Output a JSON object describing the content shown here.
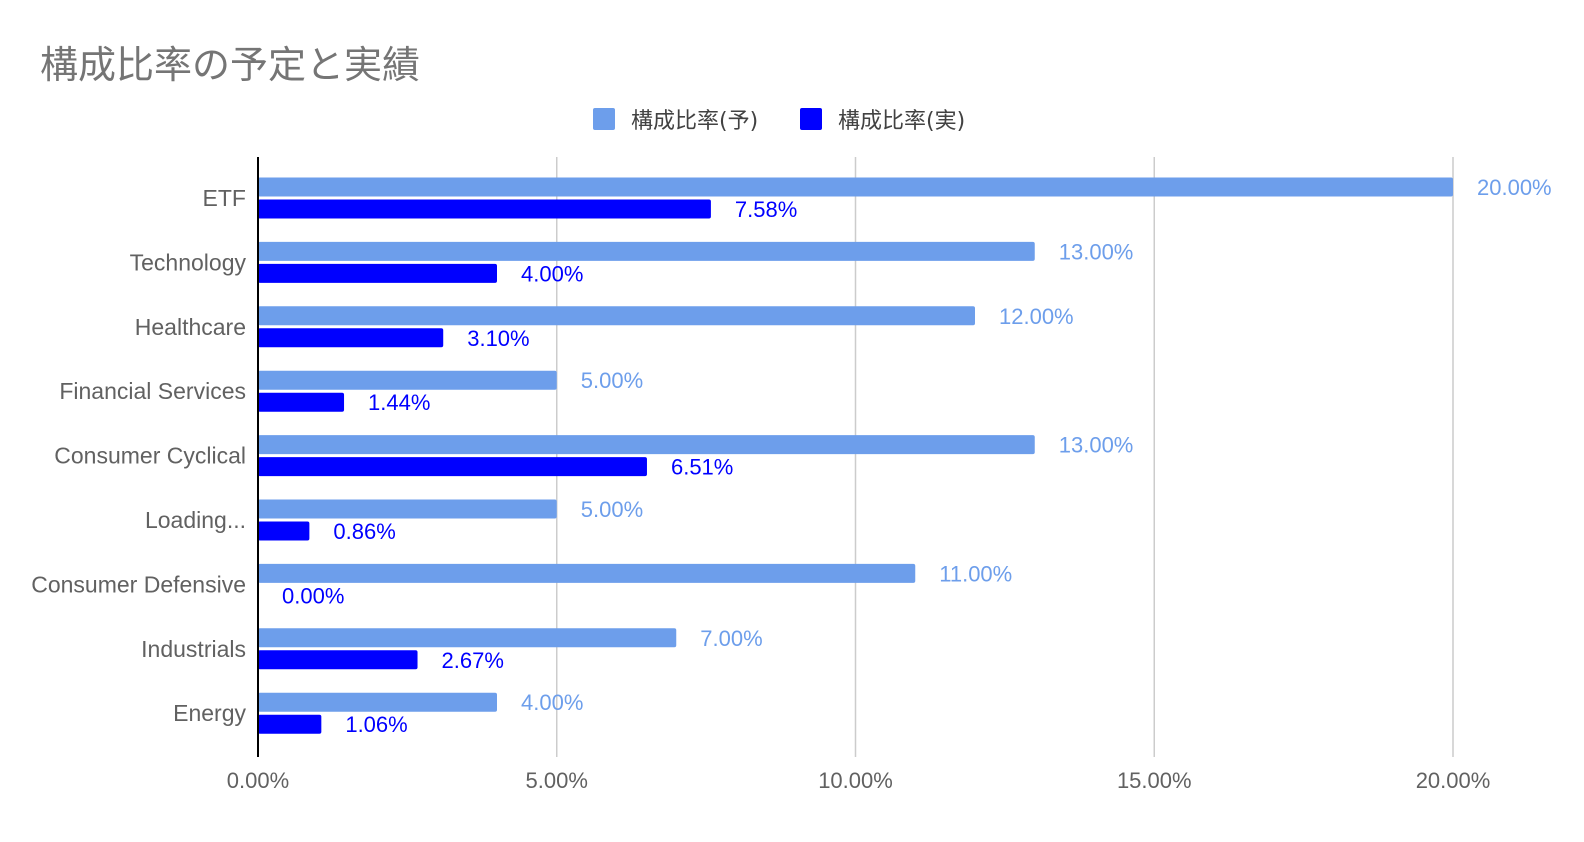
{
  "chart_data": {
    "type": "bar",
    "orientation": "horizontal",
    "title": "構成比率の予定と実績",
    "categories": [
      "ETF",
      "Technology",
      "Healthcare",
      "Financial Services",
      "Consumer Cyclical",
      "Loading...",
      "Consumer Defensive",
      "Industrials",
      "Energy"
    ],
    "series": [
      {
        "name": "構成比率(予)",
        "color": "#6d9eeb",
        "values": [
          20.0,
          13.0,
          12.0,
          5.0,
          13.0,
          5.0,
          11.0,
          7.0,
          4.0
        ],
        "labels": [
          "20.00%",
          "13.00%",
          "12.00%",
          "5.00%",
          "13.00%",
          "5.00%",
          "11.00%",
          "7.00%",
          "4.00%"
        ]
      },
      {
        "name": "構成比率(実)",
        "color": "#0000ff",
        "values": [
          7.58,
          4.0,
          3.1,
          1.44,
          6.51,
          0.86,
          0.0,
          2.67,
          1.06
        ],
        "labels": [
          "7.58%",
          "4.00%",
          "3.10%",
          "1.44%",
          "6.51%",
          "0.86%",
          "0.00%",
          "2.67%",
          "1.06%"
        ]
      }
    ],
    "xlim": [
      0,
      20
    ],
    "xticks": [
      0,
      5,
      10,
      15,
      20
    ],
    "xtick_labels": [
      "0.00%",
      "5.00%",
      "10.00%",
      "15.00%",
      "20.00%"
    ],
    "grid": true,
    "legend_position": "top"
  }
}
